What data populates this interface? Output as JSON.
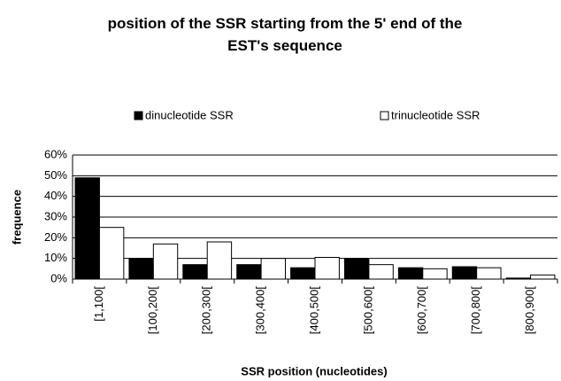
{
  "chart_data": {
    "type": "bar",
    "title": "position of the SSR starting from the 5' end of the EST's sequence",
    "xlabel": "SSR position (nucleotides)",
    "ylabel": "frequence",
    "categories": [
      "[1,100[",
      "[100,200[",
      "[200,300[",
      "[300,400[",
      "[400,500[",
      "[500,600[",
      "[600,700[",
      "[700,800[",
      "[800,900["
    ],
    "series": [
      {
        "name": "dinucleotide SSR",
        "color": "#000000",
        "values": [
          49,
          10,
          7,
          7,
          5.5,
          10,
          5.5,
          6,
          0.5
        ]
      },
      {
        "name": "trinucleotide SSR",
        "color": "#ffffff",
        "values": [
          25,
          17,
          18,
          10,
          10.5,
          7,
          5,
          5.5,
          2
        ]
      }
    ],
    "ylim": [
      0,
      60
    ],
    "yticks": [
      {
        "value": 0,
        "label": "0%"
      },
      {
        "value": 10,
        "label": "10%"
      },
      {
        "value": 20,
        "label": "20%"
      },
      {
        "value": 30,
        "label": "30%"
      },
      {
        "value": 40,
        "label": "40%"
      },
      {
        "value": 50,
        "label": "50%"
      },
      {
        "value": 60,
        "label": "60%"
      }
    ],
    "grid": true,
    "legend": "top"
  }
}
